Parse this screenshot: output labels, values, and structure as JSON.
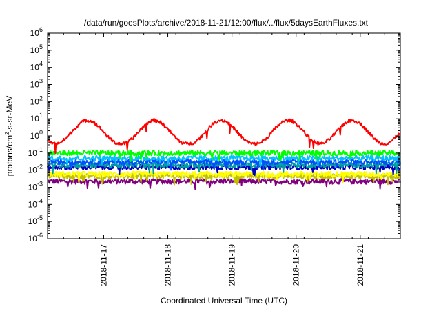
{
  "chart_data": {
    "type": "line",
    "title": "/data/run/goesPlots/archive/2018-11-21/12:00/flux/../flux/5daysEarthFluxes.txt",
    "xlabel": "Coordinated Universal Time (UTC)",
    "ylabel": {
      "base": "protons/cm",
      "sup": "2",
      "rest": "-s-sr-MeV"
    },
    "x_range_days": [
      "2018-11-16T03:00",
      "2018-11-21T15:00"
    ],
    "x_ticks": [
      "2018-11-17",
      "2018-11-18",
      "2018-11-19",
      "2018-11-20",
      "2018-11-21"
    ],
    "y_scale": "log",
    "ylim": [
      1e-06,
      1000000.0
    ],
    "y_ticks": [
      {
        "base": "10",
        "exp": "6"
      },
      {
        "base": "10",
        "exp": "5"
      },
      {
        "base": "10",
        "exp": "4"
      },
      {
        "base": "10",
        "exp": "3"
      },
      {
        "base": "10",
        "exp": "2"
      },
      {
        "base": "10",
        "exp": "1"
      },
      {
        "base": "10",
        "exp": "0"
      },
      {
        "base": "10",
        "exp": "-1"
      },
      {
        "base": "10",
        "exp": "-2"
      },
      {
        "base": "10",
        "exp": "-3"
      },
      {
        "base": "10",
        "exp": "-4"
      },
      {
        "base": "10",
        "exp": "-5"
      },
      {
        "base": "10",
        "exp": "-6"
      }
    ],
    "grid": false,
    "legend": "none",
    "series": [
      {
        "color": "#ff0000",
        "approx_level": 1.5,
        "pattern": "diurnal",
        "peaks_at": [
          "2018-11-16T18:00",
          "2018-11-17T19:00",
          "2018-11-18T20:00",
          "2018-11-19T21:00",
          "2018-11-20T21:00"
        ],
        "peak_value": 8,
        "trough_value": 0.35
      },
      {
        "color": "#00ff00",
        "approx_level": 0.1
      },
      {
        "color": "#00c0ff",
        "approx_level": 0.05
      },
      {
        "color": "#0050ff",
        "approx_level": 0.03
      },
      {
        "color": "#00a0a0",
        "approx_level": 0.02
      },
      {
        "color": "#0000c0",
        "approx_level": 0.015
      },
      {
        "color": "#ffff00",
        "approx_level": 0.006
      },
      {
        "color": "#c0c000",
        "approx_level": 0.0045
      },
      {
        "color": "#800080",
        "approx_level": 0.0022
      }
    ],
    "colors": {
      "axis": "#000000",
      "background": "#ffffff"
    }
  }
}
